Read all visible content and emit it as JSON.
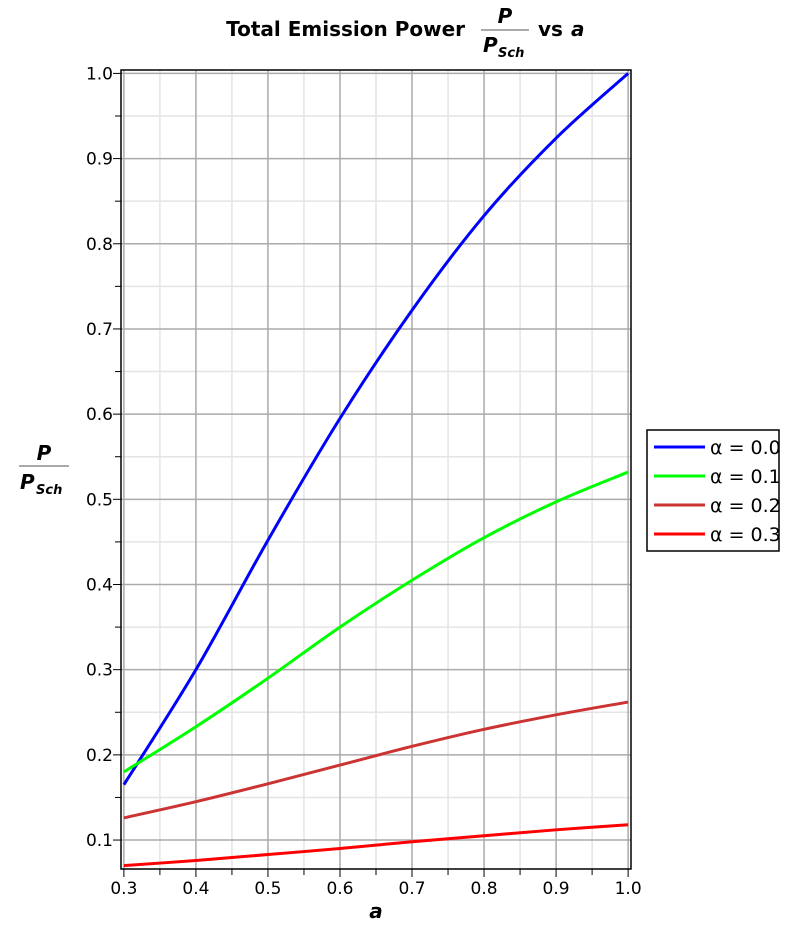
{
  "chart_data": {
    "type": "line",
    "title": {
      "prefix": "Total Emission Power",
      "num": "P",
      "den": "P",
      "den_sub": "Sch",
      "suffix": "vs",
      "var": "a"
    },
    "xlabel": "a",
    "ylabel": {
      "num": "P",
      "den": "P",
      "den_sub": "Sch"
    },
    "xlim": [
      0.296,
      1.004
    ],
    "ylim": [
      0.066,
      1.004
    ],
    "xticks": [
      "0.3",
      "0.4",
      "0.5",
      "0.6",
      "0.7",
      "0.8",
      "0.9",
      "1.0"
    ],
    "yticks": [
      "0.1",
      "0.2",
      "0.3",
      "0.4",
      "0.5",
      "0.6",
      "0.7",
      "0.8",
      "0.9",
      "1.0"
    ],
    "grid": true,
    "legend_position": "right",
    "x": [
      0.3,
      0.4,
      0.5,
      0.6,
      0.7,
      0.8,
      0.9,
      1.0
    ],
    "series": [
      {
        "name": "α = 0.0",
        "color": "#0000ff",
        "values": [
          0.165,
          0.3,
          0.452,
          0.595,
          0.722,
          0.833,
          0.924,
          1.0
        ]
      },
      {
        "name": "α = 0.1",
        "color": "#00ff00",
        "values": [
          0.18,
          0.233,
          0.29,
          0.35,
          0.405,
          0.455,
          0.497,
          0.532
        ]
      },
      {
        "name": "α = 0.2",
        "color": "#cc3333",
        "values": [
          0.126,
          0.145,
          0.166,
          0.188,
          0.21,
          0.23,
          0.247,
          0.262
        ]
      },
      {
        "name": "α = 0.3",
        "color": "#ff0000",
        "values": [
          0.07,
          0.076,
          0.083,
          0.09,
          0.098,
          0.105,
          0.112,
          0.118
        ]
      }
    ]
  }
}
